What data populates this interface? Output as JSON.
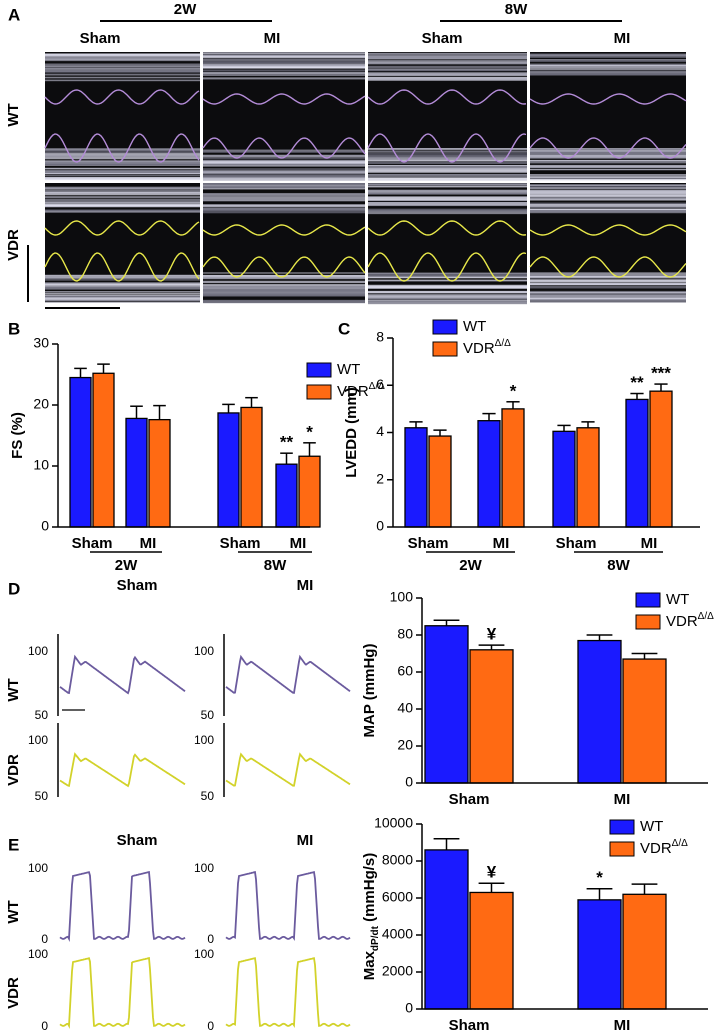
{
  "figure": {
    "panel_labels": [
      "A",
      "B",
      "C",
      "D",
      "E"
    ],
    "echo": {
      "time_labels": [
        "2W",
        "8W"
      ],
      "group_labels": [
        "Sham",
        "MI",
        "Sham",
        "MI"
      ],
      "row_labels": [
        "WT",
        "VDR"
      ]
    },
    "map_traces": {
      "col_labels": [
        "Sham",
        "MI"
      ],
      "row_labels": [
        "WT",
        "VDR"
      ],
      "ticks": [
        100,
        50
      ]
    },
    "dpdt_traces": {
      "col_labels": [
        "Sham",
        "MI"
      ],
      "row_labels": [
        "WT",
        "VDR"
      ],
      "ticks": [
        100,
        0
      ]
    }
  },
  "chart_data": [
    {
      "type": "bar",
      "ylabel": "FS (%)",
      "categories": [
        "Sham",
        "MI",
        "Sham",
        "MI"
      ],
      "group_labels": [
        "2W",
        "8W"
      ],
      "ylim": [
        0,
        30
      ],
      "yticks": [
        0,
        10,
        20,
        30
      ],
      "series": [
        {
          "name": "WT",
          "color": "#1a1aff",
          "values": [
            24.5,
            17.8,
            18.7,
            10.3
          ],
          "errors": [
            1.5,
            2.0,
            1.4,
            1.8
          ],
          "value_annotations": [
            null,
            null,
            null,
            "**"
          ]
        },
        {
          "name": "VDR",
          "name_sup": "Δ/Δ",
          "color": "#ff6a13",
          "values": [
            25.2,
            17.6,
            19.6,
            11.6
          ],
          "errors": [
            1.5,
            2.3,
            1.6,
            2.2
          ],
          "value_annotations": [
            null,
            null,
            null,
            "*"
          ]
        }
      ]
    },
    {
      "type": "bar",
      "ylabel": "LVEDD (mm)",
      "categories": [
        "Sham",
        "MI",
        "Sham",
        "MI"
      ],
      "group_labels": [
        "2W",
        "8W"
      ],
      "ylim": [
        0,
        8
      ],
      "yticks": [
        0,
        2,
        4,
        6,
        8
      ],
      "series": [
        {
          "name": "WT",
          "color": "#1a1aff",
          "values": [
            4.2,
            4.5,
            4.05,
            5.4
          ],
          "errors": [
            0.25,
            0.3,
            0.25,
            0.25
          ],
          "value_annotations": [
            null,
            null,
            null,
            "**"
          ]
        },
        {
          "name": "VDR",
          "name_sup": "Δ/Δ",
          "color": "#ff6a13",
          "values": [
            3.85,
            5.0,
            4.2,
            5.75
          ],
          "errors": [
            0.25,
            0.3,
            0.25,
            0.3
          ],
          "value_annotations": [
            null,
            "*",
            null,
            "***"
          ]
        }
      ]
    },
    {
      "type": "bar",
      "ylabel": "MAP (mmHg)",
      "categories": [
        "Sham",
        "MI"
      ],
      "ylim": [
        0,
        100
      ],
      "yticks": [
        0,
        20,
        40,
        60,
        80,
        100
      ],
      "series": [
        {
          "name": "WT",
          "color": "#1a1aff",
          "values": [
            85,
            77
          ],
          "errors": [
            3,
            3
          ],
          "value_annotations": [
            null,
            null
          ]
        },
        {
          "name": "VDR",
          "name_sup": "Δ/Δ",
          "color": "#ff6a13",
          "values": [
            72,
            67
          ],
          "errors": [
            2.5,
            3
          ],
          "value_annotations": [
            "¥",
            null
          ]
        }
      ]
    },
    {
      "type": "bar",
      "ylabel": "Max",
      "ylabel_sub": "dP/dt",
      "ylabel_rest": " (mmHg/s)",
      "categories": [
        "Sham",
        "MI"
      ],
      "ylim": [
        0,
        10000
      ],
      "yticks": [
        0,
        2000,
        4000,
        6000,
        8000,
        10000
      ],
      "series": [
        {
          "name": "WT",
          "color": "#1a1aff",
          "values": [
            8600,
            5900
          ],
          "errors": [
            600,
            600
          ],
          "value_annotations": [
            null,
            "*"
          ]
        },
        {
          "name": "VDR",
          "name_sup": "Δ/Δ",
          "color": "#ff6a13",
          "values": [
            6300,
            6200
          ],
          "errors": [
            500,
            550
          ],
          "value_annotations": [
            "¥",
            null
          ]
        }
      ]
    }
  ]
}
